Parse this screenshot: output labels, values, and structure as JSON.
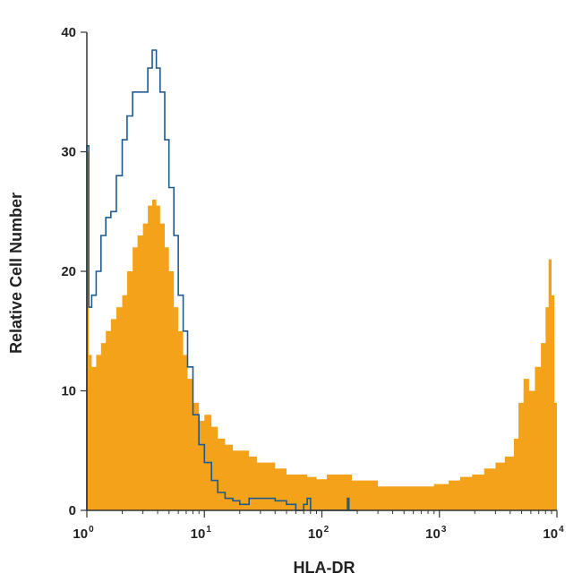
{
  "chart_data": {
    "type": "area",
    "xlabel": "HLA-DR",
    "ylabel": "Relative Cell Number",
    "x_scale": "log10",
    "xlim": [
      1,
      10000
    ],
    "ylim": [
      0,
      40
    ],
    "grid": false,
    "legend": "none",
    "x_ticks": [
      {
        "value": 1,
        "base": "10",
        "exp": "0"
      },
      {
        "value": 10,
        "base": "10",
        "exp": "1"
      },
      {
        "value": 100,
        "base": "10",
        "exp": "2"
      },
      {
        "value": 1000,
        "base": "10",
        "exp": "3"
      },
      {
        "value": 10000,
        "base": "10",
        "exp": "4"
      }
    ],
    "y_ticks": [
      0,
      10,
      20,
      30,
      40
    ],
    "series": [
      {
        "style": "filled",
        "color": "#f5a21b",
        "x": [
          1,
          1.04,
          1.1,
          1.2,
          1.32,
          1.45,
          1.6,
          1.78,
          2,
          2.2,
          2.45,
          2.7,
          3,
          3.3,
          3.6,
          3.9,
          4.2,
          4.6,
          5,
          5.5,
          6,
          6.6,
          7.2,
          8,
          9,
          10,
          11.5,
          13,
          15,
          17.5,
          20,
          24,
          28,
          33,
          40,
          50,
          60,
          75,
          90,
          110,
          140,
          180,
          230,
          300,
          400,
          520,
          700,
          900,
          1200,
          1500,
          1900,
          2400,
          3000,
          3600,
          4300,
          4700,
          5200,
          5800,
          6500,
          7300,
          8000,
          8500,
          9000,
          9500,
          10000
        ],
        "values": [
          30,
          13,
          12,
          13,
          14,
          15,
          16,
          17,
          18,
          20,
          22,
          23,
          24,
          25.5,
          26,
          25.5,
          24,
          22,
          20,
          17,
          15,
          13,
          11,
          9,
          7.5,
          8,
          7,
          6,
          5.5,
          5,
          5,
          4.5,
          4,
          4,
          3.5,
          3,
          3,
          2.8,
          2.6,
          3,
          3,
          2.5,
          2.5,
          2,
          2,
          2,
          2,
          2.2,
          2.5,
          2.8,
          3,
          3.5,
          4,
          4.5,
          6,
          9,
          11,
          10,
          12,
          14,
          17,
          21,
          18,
          9,
          0
        ]
      },
      {
        "style": "outline",
        "color": "#1c5a8f",
        "x": [
          1,
          1.04,
          1.1,
          1.2,
          1.32,
          1.45,
          1.6,
          1.78,
          2,
          2.2,
          2.45,
          2.7,
          3,
          3.3,
          3.6,
          3.9,
          4.2,
          4.6,
          5,
          5.5,
          6,
          6.6,
          7.2,
          8,
          9,
          10,
          11.5,
          13,
          15,
          17.5,
          20,
          24,
          28,
          33,
          40,
          50,
          60,
          70,
          75,
          80,
          100,
          150,
          165,
          170,
          200
        ],
        "values": [
          30.5,
          17,
          18,
          20,
          23,
          24.5,
          25,
          28,
          31,
          33,
          35,
          35,
          35,
          37,
          38.5,
          37,
          35,
          31,
          27,
          23,
          18,
          15,
          12,
          8,
          5.5,
          4,
          2.5,
          1.5,
          1,
          0.8,
          0.5,
          1,
          1,
          1,
          0.8,
          0.5,
          0,
          0.5,
          1,
          0,
          0,
          0,
          1,
          0,
          0
        ]
      }
    ]
  }
}
